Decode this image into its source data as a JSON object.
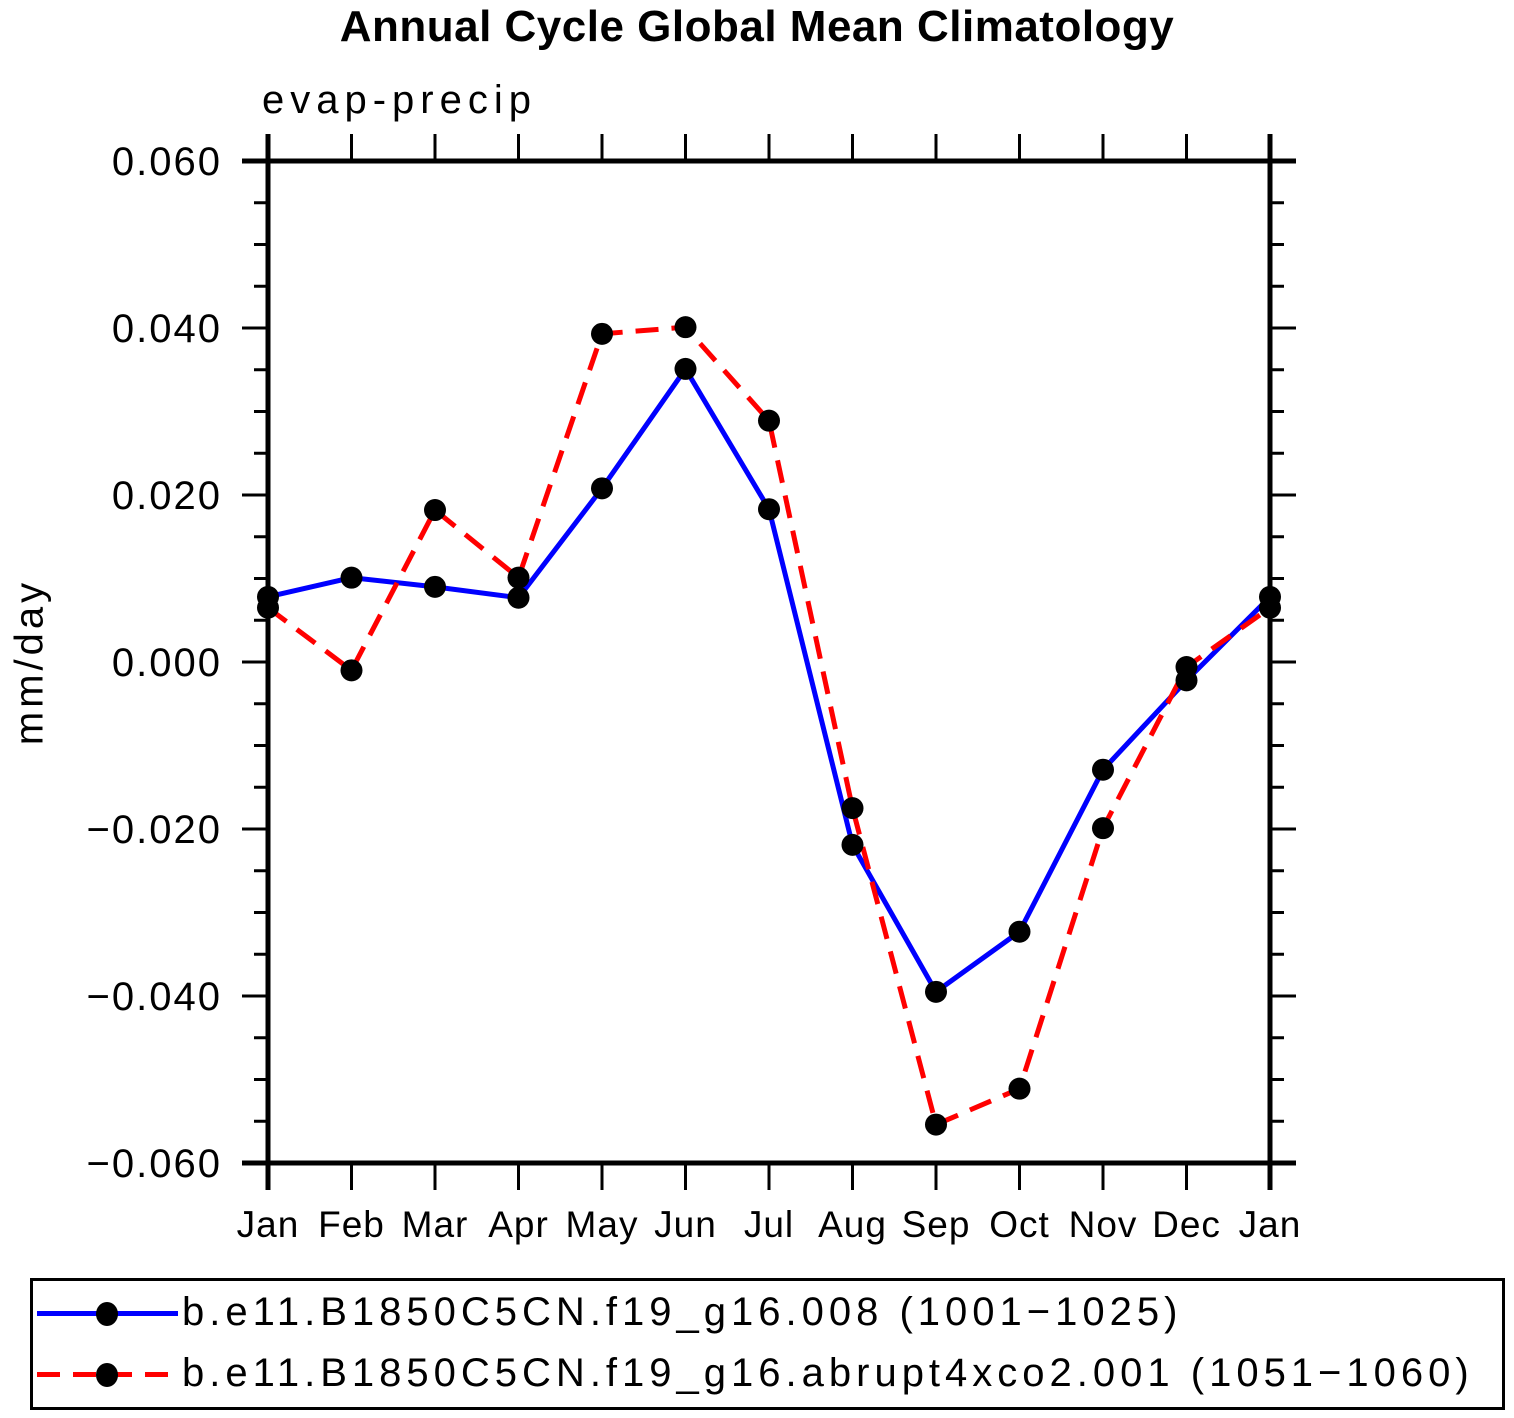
{
  "title": "Annual Cycle Global Mean Climatology",
  "chart_data": {
    "type": "line",
    "title": "Annual Cycle Global Mean Climatology",
    "subtitle": "evap-precip",
    "ylabel": "mm/day",
    "xlabel": "",
    "x_tick_labels": [
      "Jan",
      "Feb",
      "Mar",
      "Apr",
      "May",
      "Jun",
      "Jul",
      "Aug",
      "Sep",
      "Oct",
      "Nov",
      "Dec",
      "Jan"
    ],
    "y_tick_labels": [
      "0.060",
      "0.040",
      "0.020",
      "0.000",
      "−0.020",
      "−0.040",
      "−0.060"
    ],
    "ylim": [
      -0.06,
      0.06
    ],
    "y_major_step": 0.02,
    "y_minor_step": 0.005,
    "grid": false,
    "legend_position": "bottom",
    "axis_color": "#000000",
    "marker_shape": "filled-circle",
    "series": [
      {
        "name": "b.e11.B1850C5CN.f19_g16.008 (1001−1025)",
        "color": "#0000ff",
        "line_style": "solid",
        "marker_color": "#000000",
        "values": [
          0.0078,
          0.0101,
          0.009,
          0.0077,
          0.0208,
          0.0351,
          0.0183,
          -0.0219,
          -0.0395,
          -0.0323,
          -0.0129,
          -0.0022,
          0.0078
        ]
      },
      {
        "name": "b.e11.B1850C5CN.f19_g16.abrupt4xco2.001 (1051−1060)",
        "color": "#ff0000",
        "line_style": "dashed",
        "marker_color": "#000000",
        "values": [
          0.0065,
          -0.001,
          0.0182,
          0.0101,
          0.0393,
          0.0401,
          0.0289,
          -0.0175,
          -0.0554,
          -0.0511,
          -0.0199,
          -0.0006,
          0.0065
        ]
      }
    ]
  }
}
